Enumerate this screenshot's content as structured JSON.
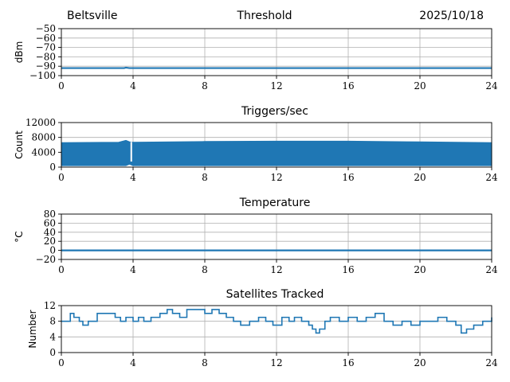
{
  "header": {
    "location": "Beltsville",
    "date": "2025/10/18"
  },
  "colors": {
    "series": "#1f77b4",
    "grid": "#b0b0b0",
    "axes": "#000000"
  },
  "chart_data": [
    {
      "type": "line",
      "title": "Threshold",
      "xlabel": "",
      "ylabel": "dBm",
      "xlim": [
        0,
        24
      ],
      "ylim": [
        -100,
        -50
      ],
      "xticks": [
        0,
        4,
        8,
        12,
        16,
        20,
        24
      ],
      "yticks": [
        -100,
        -90,
        -80,
        -70,
        -60,
        -50
      ],
      "grid": true,
      "series": [
        {
          "x": [
            0,
            3.5,
            3.6,
            3.8,
            4,
            24
          ],
          "y": [
            -92,
            -92,
            -91.5,
            -92,
            -92,
            -92
          ]
        }
      ]
    },
    {
      "type": "line",
      "title": "Triggers/sec",
      "xlabel": "",
      "ylabel": "Count",
      "xlim": [
        0,
        24
      ],
      "ylim": [
        0,
        12000
      ],
      "xticks": [
        0,
        4,
        8,
        12,
        16,
        20,
        24
      ],
      "yticks": [
        0,
        4000,
        8000,
        12000
      ],
      "grid": true,
      "series": [
        {
          "x": [
            0,
            3.2,
            3.6,
            3.8,
            4,
            8,
            12,
            16,
            20,
            24
          ],
          "y_min": [
            400,
            400,
            400,
            800,
            400,
            400,
            400,
            400,
            400,
            400
          ],
          "y_max": [
            6600,
            6700,
            7200,
            6800,
            6700,
            6900,
            7000,
            7000,
            6800,
            6600
          ]
        }
      ]
    },
    {
      "type": "line",
      "title": "Temperature",
      "xlabel": "",
      "ylabel": "°C",
      "xlim": [
        0,
        24
      ],
      "ylim": [
        -20,
        80
      ],
      "xticks": [
        0,
        4,
        8,
        12,
        16,
        20,
        24
      ],
      "yticks": [
        -20,
        0,
        20,
        40,
        60,
        80
      ],
      "grid": true,
      "series": [
        {
          "x": [
            0,
            24
          ],
          "y": [
            0,
            0
          ]
        }
      ]
    },
    {
      "type": "line",
      "title": "Satellites Tracked",
      "xlabel": "",
      "ylabel": "Number",
      "xlim": [
        0,
        24
      ],
      "ylim": [
        0,
        12
      ],
      "xticks": [
        0,
        4,
        8,
        12,
        16,
        20,
        24
      ],
      "yticks": [
        0,
        4,
        8,
        12
      ],
      "grid": true,
      "series": [
        {
          "step": true,
          "x": [
            0,
            0.5,
            0.7,
            1,
            1.2,
            1.5,
            2,
            3,
            3.3,
            3.6,
            4,
            4.3,
            4.6,
            5,
            5.5,
            5.9,
            6.2,
            6.6,
            7,
            8,
            8.4,
            8.8,
            9.2,
            9.6,
            10,
            10.5,
            11,
            11.4,
            11.8,
            12.3,
            12.7,
            13,
            13.4,
            13.8,
            14,
            14.2,
            14.4,
            14.7,
            15,
            15.5,
            16,
            16.5,
            17,
            17.5,
            18,
            18.5,
            19,
            19.5,
            20,
            21,
            21.5,
            22,
            22.3,
            22.6,
            23,
            23.5,
            24
          ],
          "y": [
            8,
            10,
            9,
            8,
            7,
            8,
            10,
            9,
            8,
            9,
            8,
            9,
            8,
            9,
            10,
            11,
            10,
            9,
            11,
            10,
            11,
            10,
            9,
            8,
            7,
            8,
            9,
            8,
            7,
            9,
            8,
            9,
            8,
            7,
            6,
            5,
            6,
            8,
            9,
            8,
            9,
            8,
            9,
            10,
            8,
            7,
            8,
            7,
            8,
            9,
            8,
            7,
            5,
            6,
            7,
            8,
            9
          ]
        }
      ]
    }
  ]
}
